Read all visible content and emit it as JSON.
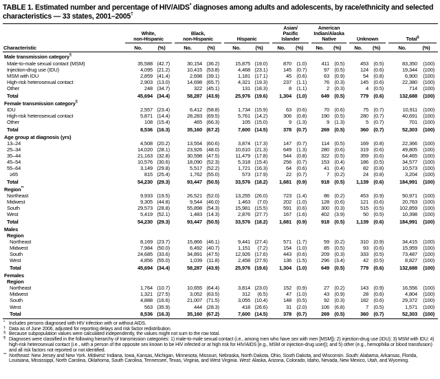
{
  "table": {
    "title_parts": [
      {
        "t": "TABLE 1. Estimated number and percentage of HIV/AIDS"
      },
      {
        "t": "*",
        "sup": true
      },
      {
        "t": " diagnoses among adults and adolescents, by race/ethnicity and selected characteristics — 33 states, 2001–2005"
      },
      {
        "t": "†",
        "sup": true
      }
    ],
    "characteristic_header": "Characteristic",
    "subheaders": {
      "no": "No.",
      "pct": "(%)"
    },
    "column_groups": [
      {
        "label": "White,\nnon-Hispanic"
      },
      {
        "label": "Black,\nnon-Hispanic"
      },
      {
        "label": "Hispanic"
      },
      {
        "label": "Asian/\nPacific\nIslander"
      },
      {
        "label": "American\nIndian/Alaska\nNative"
      },
      {
        "label": "Unknown"
      },
      {
        "label": "Total",
        "sup": "§"
      }
    ],
    "sections": [
      {
        "header": "Male transmission category",
        "header_sup": "¶",
        "rows": [
          {
            "label": "Male-to-male sexual contact (MSM)",
            "indent": 1,
            "values": [
              "35,588",
              "(42.7)",
              "30,154",
              "(36.2)",
              "15,875",
              "(19.0)",
              "870",
              "(1.0)",
              "411",
              "(0.5)",
              "453",
              "(0.5)",
              "83,350",
              "(100)"
            ]
          },
          {
            "label": "Injection-drug use (IDU)",
            "indent": 1,
            "values": [
              "4,095",
              "(21.2)",
              "10,415",
              "(53.8)",
              "4,468",
              "(23.1)",
              "145",
              "(0.7)",
              "97",
              "(0.5)",
              "124",
              "(0.6)",
              "19,344",
              "(100)"
            ]
          },
          {
            "label": "MSM with IDU",
            "indent": 1,
            "values": [
              "2,859",
              "(41.4)",
              "2,698",
              "(39.1)",
              "1,181",
              "(17.1)",
              "45",
              "(0.6)",
              "63",
              "(0.9)",
              "54",
              "(0.8)",
              "6,900",
              "(100)"
            ]
          },
          {
            "label": "High-risk heterosexual contact",
            "indent": 1,
            "values": [
              "2,903",
              "(13.0)",
              "14,698",
              "(65.7)",
              "4,321",
              "(19.3)",
              "237",
              "(1.1)",
              "76",
              "(0.3)",
              "145",
              "(0.6)",
              "22,380",
              "(100)"
            ]
          },
          {
            "label": "Other",
            "indent": 1,
            "values": [
              "248",
              "(34.7)",
              "322",
              "(45.1)",
              "131",
              "(18.3)",
              "8",
              "(1.1)",
              "2",
              "(0.3)",
              "4",
              "(0.5)",
              "714",
              "(100)"
            ]
          },
          {
            "label": "Total",
            "indent": 1,
            "bold": true,
            "values": [
              "45,694",
              "(34.4)",
              "58,287",
              "(43.9)",
              "25,976",
              "(19.6)",
              "1,304",
              "(1.0)",
              "649",
              "(0.5)",
              "779",
              "(0.6)",
              "132,688",
              "(100)"
            ]
          }
        ]
      },
      {
        "header": "Female transmission category",
        "header_sup": "¶",
        "rows": [
          {
            "label": "IDU",
            "indent": 1,
            "values": [
              "2,557",
              "(23.4)",
              "6,412",
              "(58.8)",
              "1,734",
              "(15.9)",
              "63",
              "(0.6)",
              "70",
              "(0.6)",
              "75",
              "(0.7)",
              "10,911",
              "(100)"
            ]
          },
          {
            "label": "High-risk heterosexual contact",
            "indent": 1,
            "values": [
              "5,871",
              "(14.4)",
              "28,283",
              "(69.5)",
              "5,761",
              "(14.2)",
              "306",
              "(0.8)",
              "190",
              "(0.5)",
              "280",
              "(0.7)",
              "40,691",
              "(100)"
            ]
          },
          {
            "label": "Other",
            "indent": 1,
            "values": [
              "108",
              "(15.4)",
              "465",
              "(66.3)",
              "105",
              "(15.0)",
              "9",
              "(1.3)",
              "9",
              "(1.3)",
              "5",
              "(0.7)",
              "701",
              "(100)"
            ]
          },
          {
            "label": "Total",
            "indent": 1,
            "bold": true,
            "values": [
              "8,536",
              "(16.3)",
              "35,160",
              "(67.2)",
              "7,600",
              "(14.5)",
              "378",
              "(0.7)",
              "269",
              "(0.5)",
              "360",
              "(0.7)",
              "52,303",
              "(100)"
            ]
          }
        ]
      },
      {
        "header": "Age group at diagnosis (yrs)",
        "rows": [
          {
            "label": "13–24",
            "indent": 1,
            "values": [
              "4,508",
              "(20.2)",
              "13,554",
              "(60.6)",
              "3,874",
              "(17.3)",
              "147",
              "(0.7)",
              "114",
              "(0.5)",
              "169",
              "(0.8)",
              "22,366",
              "(100)"
            ]
          },
          {
            "label": "25–34",
            "indent": 1,
            "values": [
              "14,020",
              "(28.1)",
              "23,926",
              "(48.0)",
              "10,610",
              "(21.3)",
              "649",
              "(1.3)",
              "280",
              "(0.6)",
              "319",
              "(0.6)",
              "49,805",
              "(100)"
            ]
          },
          {
            "label": "35–44",
            "indent": 1,
            "values": [
              "21,163",
              "(32.8)",
              "30,598",
              "(47.5)",
              "11,479",
              "(17.8)",
              "544",
              "(0.8)",
              "322",
              "(0.5)",
              "359",
              "(0.6)",
              "64,465",
              "(100)"
            ]
          },
          {
            "label": "45–54",
            "indent": 1,
            "values": [
              "10,576",
              "(30.6)",
              "18,090",
              "(52.3)",
              "5,318",
              "(15.4)",
              "256",
              "(0.7)",
              "153",
              "(0.4)",
              "186",
              "(0.5)",
              "34,577",
              "(100)"
            ]
          },
          {
            "label": "55–64",
            "indent": 1,
            "values": [
              "3,149",
              "(29.8)",
              "5,517",
              "(52.2)",
              "1,721",
              "(16.3)",
              "64",
              "(0.6)",
              "41",
              "(0.4)",
              "82",
              "(0.8)",
              "10,573",
              "(100)"
            ]
          },
          {
            "label": "≥65",
            "indent": 2,
            "values": [
              "815",
              "(25.4)",
              "1,762",
              "(55.0)",
              "573",
              "(17.9)",
              "22",
              "(0.7)",
              "7",
              "(0.2)",
              "24",
              "(0.8)",
              "3,204",
              "(100)"
            ]
          },
          {
            "label": "Total",
            "indent": 1,
            "bold": true,
            "values": [
              "54,230",
              "(29.3)",
              "93,447",
              "(50.5)",
              "33,576",
              "(18.2)",
              "1,681",
              "(0.9)",
              "918",
              "(0.5)",
              "1,139",
              "(0.6)",
              "184,991",
              "(100)"
            ]
          }
        ]
      },
      {
        "header": "Region",
        "header_sup": "**",
        "rows": [
          {
            "label": "Northeast",
            "indent": 1,
            "values": [
              "9,933",
              "(19.5)",
              "26,521",
              "(52.0)",
              "13,255",
              "(26.0)",
              "723",
              "(1.4)",
              "86",
              "(0.2)",
              "453",
              "(0.9)",
              "50,971",
              "(100)"
            ]
          },
          {
            "label": "Midwest",
            "indent": 1,
            "values": [
              "9,305",
              "(44.8)",
              "9,544",
              "(46.0)",
              "1,463",
              "(7.0)",
              "202",
              "(1.0)",
              "128",
              "(0.6)",
              "121",
              "(0.6)",
              "20,763",
              "(100)"
            ]
          },
          {
            "label": "South",
            "indent": 1,
            "values": [
              "29,573",
              "(28.8)",
              "55,898",
              "(54.3)",
              "15,981",
              "(15.5)",
              "591",
              "(0.6)",
              "300",
              "(0.3)",
              "515",
              "(0.5)",
              "102,859",
              "(100)"
            ]
          },
          {
            "label": "West",
            "indent": 1,
            "values": [
              "5,419",
              "(52.1)",
              "1,483",
              "(14.3)",
              "2,876",
              "(27.7)",
              "167",
              "(1.6)",
              "402",
              "(3.9)",
              "50",
              "(0.5)",
              "10,398",
              "(100)"
            ]
          },
          {
            "label": "Total",
            "indent": 1,
            "bold": true,
            "values": [
              "54,230",
              "(29.3)",
              "93,447",
              "(50.5)",
              "33,576",
              "(18.2)",
              "1,681",
              "(0.9)",
              "918",
              "(0.5)",
              "1,139",
              "(0.6)",
              "184,991",
              "(100)"
            ]
          }
        ]
      },
      {
        "header": "Males",
        "rows": [
          {
            "subheader": "Region",
            "indent": 1
          },
          {
            "label": "Northeast",
            "indent": 2,
            "values": [
              "8,169",
              "(23.7)",
              "15,866",
              "(46.1)",
              "9,441",
              "(27.4)",
              "571",
              "(1.7)",
              "59",
              "(0.2)",
              "310",
              "(0.9)",
              "34,415",
              "(100)"
            ]
          },
          {
            "label": "Midwest",
            "indent": 2,
            "values": [
              "7,984",
              "(50.0)",
              "6,492",
              "(40.7)",
              "1,151",
              "(7.2)",
              "154",
              "(1.0)",
              "85",
              "(0.5)",
              "93",
              "(0.6)",
              "15,959",
              "(100)"
            ]
          },
          {
            "label": "South",
            "indent": 2,
            "values": [
              "24,685",
              "(33.6)",
              "34,891",
              "(47.5)",
              "12,926",
              "(17.6)",
              "443",
              "(0.6)",
              "209",
              "(0.3)",
              "333",
              "(0.5)",
              "73,487",
              "(100)"
            ]
          },
          {
            "label": "West",
            "indent": 2,
            "values": [
              "4,856",
              "(55.0)",
              "1,039",
              "(11.8)",
              "2,458",
              "(27.9)",
              "136",
              "(1.5)",
              "296",
              "(3.4)",
              "42",
              "(0.5)",
              "8,827",
              "(100)"
            ]
          },
          {
            "label": "Total",
            "indent": 2,
            "bold": true,
            "values": [
              "45,694",
              "(34.4)",
              "58,287",
              "(43.9)",
              "25,976",
              "(19.6)",
              "1,304",
              "(1.0)",
              "649",
              "(0.5)",
              "779",
              "(0.6)",
              "132,688",
              "(100)"
            ]
          }
        ]
      },
      {
        "header": "Females",
        "rows": [
          {
            "subheader": "Region",
            "indent": 1
          },
          {
            "label": "Northeast",
            "indent": 2,
            "values": [
              "1,764",
              "(10.7)",
              "10,655",
              "(64.4)",
              "3,814",
              "(23.0)",
              "152",
              "(0.9)",
              "27",
              "(0.2)",
              "143",
              "(0.9)",
              "16,556",
              "(100)"
            ]
          },
          {
            "label": "Midwest",
            "indent": 2,
            "values": [
              "1,321",
              "(27.5)",
              "3,052",
              "(63.5)",
              "312",
              "(6.5)",
              "47",
              "(1.0)",
              "43",
              "(0.9)",
              "28",
              "(0.6)",
              "4,804",
              "(100)"
            ]
          },
          {
            "label": "South",
            "indent": 2,
            "values": [
              "4,888",
              "(16.6)",
              "21,007",
              "(71.5)",
              "3,055",
              "(10.4)",
              "148",
              "(0.5)",
              "92",
              "(0.3)",
              "182",
              "(0.6)",
              "29,372",
              "(100)"
            ]
          },
          {
            "label": "West",
            "indent": 2,
            "values": [
              "563",
              "(35.9)",
              "444",
              "(28.3)",
              "418",
              "(26.6)",
              "31",
              "(2.0)",
              "106",
              "(6.8)",
              "7",
              "(0.5)",
              "1,571",
              "(100)"
            ]
          },
          {
            "label": "Total",
            "indent": 2,
            "bold": true,
            "values": [
              "8,536",
              "(16.3)",
              "35,160",
              "(67.2)",
              "7,600",
              "(14.5)",
              "378",
              "(0.7)",
              "269",
              "(0.5)",
              "360",
              "(0.7)",
              "52,303",
              "(100)"
            ]
          }
        ]
      }
    ],
    "footnote_italic_terms": [
      "Northeast:",
      "Midwest:",
      "South:",
      "West:"
    ],
    "footnotes": [
      {
        "marker": "*",
        "text": "Includes persons diagnosed with HIV infection with or without AIDS."
      },
      {
        "marker": "†",
        "text": "Data as of June 2006, adjusted for reporting delays and risk factor redistribution."
      },
      {
        "marker": "§",
        "text": "Because subpopulation values were calculated independently, the values might not sum to the row total."
      },
      {
        "marker": "¶",
        "text": "Diagnoses were classified in the following hierarchy of transmission categories: 1) male-to-male sexual contact (i.e., among men who have sex with men [MSM]); 2) injection-drug use (IDU); 3) MSM with IDU; 4) high-risk heterosexual contact (i.e., with a person of the opposite sex known to be HIV infected or at high risk for HIV/AIDS [e.g., MSM or injection-drug user]); and 5) other (e.g., hemophilia or blood transfusion) and all risk factors not reported or not identified."
      },
      {
        "marker": "**",
        "text": "Northeast: New Jersey and New York. Midwest: Indiana, Iowa, Kansas, Michigan, Minnesota, Missouri, Nebraska, North Dakota, Ohio, South Dakota, and Wisconsin. South: Alabama, Arkansas, Florida, Louisiana, Mississippi, North Carolina, Oklahoma, South Carolina, Tennessee, Texas, Virginia, and West Virginia. West: Alaska, Arizona, Colorado, Idaho, Nevada, New Mexico, Utah, and Wyoming."
      }
    ]
  }
}
